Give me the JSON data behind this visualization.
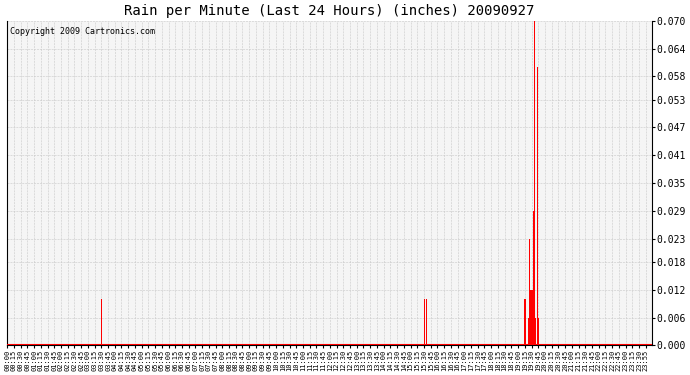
{
  "title": "Rain per Minute (Last 24 Hours) (inches) 20090927",
  "copyright_text": "Copyright 2009 Cartronics.com",
  "bar_color": "#ff0000",
  "background_color": "#ffffff",
  "plot_bg_color": "#f5f5f5",
  "grid_color": "#c8c8c8",
  "ylim": [
    0.0,
    0.07
  ],
  "yticks": [
    0.0,
    0.006,
    0.012,
    0.018,
    0.023,
    0.029,
    0.035,
    0.041,
    0.047,
    0.053,
    0.058,
    0.064,
    0.07
  ],
  "x_tick_labels": [
    "00:00",
    "00:15",
    "00:30",
    "00:45",
    "01:00",
    "01:15",
    "01:30",
    "01:45",
    "02:00",
    "02:15",
    "02:30",
    "02:45",
    "03:00",
    "03:15",
    "03:30",
    "03:45",
    "04:00",
    "04:15",
    "04:30",
    "04:45",
    "05:00",
    "05:15",
    "05:30",
    "05:45",
    "06:00",
    "06:15",
    "06:30",
    "06:45",
    "07:00",
    "07:15",
    "07:30",
    "07:45",
    "08:00",
    "08:15",
    "08:30",
    "08:45",
    "09:00",
    "09:15",
    "09:30",
    "09:45",
    "10:00",
    "10:15",
    "10:30",
    "10:45",
    "11:00",
    "11:15",
    "11:30",
    "11:45",
    "12:00",
    "12:15",
    "12:30",
    "12:45",
    "13:00",
    "13:15",
    "13:30",
    "13:45",
    "14:00",
    "14:15",
    "14:30",
    "14:45",
    "15:00",
    "15:15",
    "15:30",
    "15:45",
    "16:00",
    "16:15",
    "16:30",
    "16:45",
    "17:00",
    "17:15",
    "17:30",
    "17:45",
    "18:00",
    "18:15",
    "18:30",
    "18:45",
    "19:00",
    "19:15",
    "19:30",
    "19:45",
    "20:00",
    "20:15",
    "20:30",
    "20:45",
    "21:00",
    "21:15",
    "21:30",
    "21:45",
    "22:00",
    "22:15",
    "22:30",
    "22:45",
    "23:00",
    "23:15",
    "23:30",
    "23:55"
  ],
  "rain_data": [
    [
      211,
      0.01
    ],
    [
      931,
      0.01
    ],
    [
      936,
      0.01
    ],
    [
      1155,
      0.01
    ],
    [
      1156,
      0.01
    ],
    [
      1163,
      0.006
    ],
    [
      1164,
      0.006
    ],
    [
      1165,
      0.006
    ],
    [
      1166,
      0.023
    ],
    [
      1167,
      0.012
    ],
    [
      1168,
      0.012
    ],
    [
      1169,
      0.012
    ],
    [
      1170,
      0.012
    ],
    [
      1171,
      0.006
    ],
    [
      1172,
      0.012
    ],
    [
      1173,
      0.012
    ],
    [
      1174,
      0.012
    ],
    [
      1175,
      0.029
    ],
    [
      1176,
      0.029
    ],
    [
      1177,
      0.07
    ],
    [
      1178,
      0.006
    ],
    [
      1179,
      0.006
    ],
    [
      1183,
      0.06
    ],
    [
      1184,
      0.006
    ],
    [
      1185,
      0.006
    ],
    [
      1186,
      0.006
    ]
  ]
}
